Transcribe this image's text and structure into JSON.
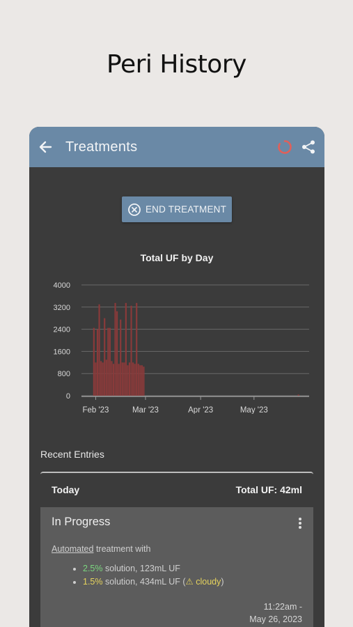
{
  "promo": {
    "title": "Peri History"
  },
  "appbar": {
    "title": "Treatments",
    "back_icon": "arrow-left-icon",
    "spinner_icon": "loading-spinner-icon",
    "share_icon": "share-icon",
    "color": "#6a89a6",
    "spinner_color": "#e0605a"
  },
  "actions": {
    "end_treatment": "END TREATMENT"
  },
  "chart_data": {
    "type": "bar",
    "title": "Total UF by Day",
    "xlabel": "",
    "ylabel": "",
    "ylim": [
      0,
      4000
    ],
    "yticks": [
      "4000",
      "3200",
      "2400",
      "1600",
      "800",
      "0"
    ],
    "xticks": [
      "Feb '23",
      "Mar '23",
      "Apr '23",
      "May '23"
    ],
    "bar_color": "#8a3a3a",
    "grid": true,
    "x": [
      "2023-01-31",
      "2023-02-01",
      "2023-02-02",
      "2023-02-03",
      "2023-02-04",
      "2023-02-05",
      "2023-02-06",
      "2023-02-07",
      "2023-02-08",
      "2023-02-09",
      "2023-02-10",
      "2023-02-11",
      "2023-02-12",
      "2023-02-13",
      "2023-02-14",
      "2023-02-15",
      "2023-02-16",
      "2023-02-17",
      "2023-02-18",
      "2023-02-19",
      "2023-02-20",
      "2023-02-21",
      "2023-02-22",
      "2023-02-23",
      "2023-02-24",
      "2023-02-25",
      "2023-02-26",
      "2023-02-27",
      "2023-02-28",
      "2023-05-26"
    ],
    "values": [
      2450,
      1200,
      2400,
      3300,
      1250,
      1200,
      2800,
      1300,
      2450,
      2450,
      1250,
      1150,
      3350,
      3050,
      1150,
      2750,
      1200,
      1200,
      3350,
      1100,
      1200,
      3250,
      1200,
      1150,
      3350,
      1150,
      1100,
      1100,
      1050,
      42
    ]
  },
  "recent": {
    "label": "Recent Entries",
    "day_label": "Today",
    "total_uf": "Total UF: 42ml",
    "entry": {
      "status": "In Progress",
      "desc_link": "Automated",
      "desc_rest": " treatment with",
      "items": [
        {
          "pct": "2.5%",
          "text": " solution, 123mL UF",
          "flag": ""
        },
        {
          "pct": "1.5%",
          "text": " solution, 434mL UF (",
          "flag": "⚠ cloudy",
          "close": ")"
        }
      ],
      "time_line1": "11:22am -",
      "time_line2": "May 26, 2023",
      "more_icon": "more-vertical-icon"
    }
  }
}
